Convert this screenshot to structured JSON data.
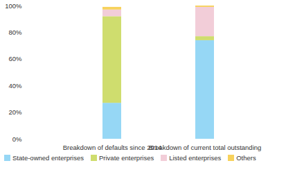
{
  "chart_data": {
    "type": "bar",
    "stacked": true,
    "legend": "bottom",
    "categories": [
      "Breakdown of defaults since 2014",
      "Breakdown of current total outstanding"
    ],
    "series": [
      {
        "name": "State-owned enterprises",
        "color": "#96d7f5",
        "values": [
          27,
          74
        ]
      },
      {
        "name": "Private enterprises",
        "color": "#cfdd6e",
        "values": [
          65,
          3
        ]
      },
      {
        "name": "Listed enterprises",
        "color": "#f2cdd8",
        "values": [
          5,
          22
        ]
      },
      {
        "name": "Others",
        "color": "#f7d25c",
        "values": [
          2,
          1
        ]
      }
    ],
    "ylim": [
      0,
      100
    ],
    "yticks": [
      {
        "value": 0,
        "label": "0%"
      },
      {
        "value": 20,
        "label": "20%"
      },
      {
        "value": 40,
        "label": "40%"
      },
      {
        "value": 60,
        "label": "60%"
      },
      {
        "value": 80,
        "label": "80%"
      },
      {
        "value": 100,
        "label": "100%"
      }
    ]
  }
}
